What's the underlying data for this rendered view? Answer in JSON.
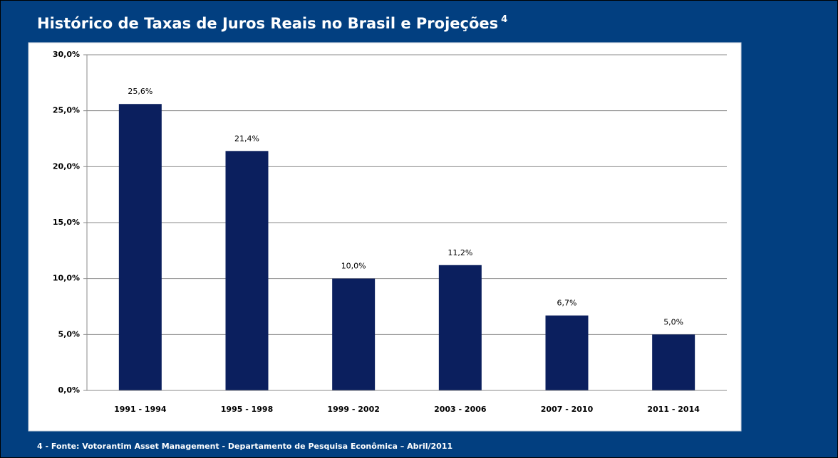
{
  "chart_data": {
    "type": "bar",
    "title": "Histórico de Taxas de Juros Reais no Brasil e Projeções",
    "title_superscript": "4",
    "categories": [
      "1991 - 1994",
      "1995 - 1998",
      "1999 - 2002",
      "2003 - 2006",
      "2007 - 2010",
      "2011 - 2014"
    ],
    "values": [
      25.6,
      21.4,
      10.0,
      11.2,
      6.7,
      5.0
    ],
    "value_labels": [
      "25,6%",
      "21,4%",
      "10,0%",
      "11,2%",
      "6,7%",
      "5,0%"
    ],
    "color": "#0b1f5e",
    "ylim": [
      0,
      30
    ],
    "yticks": [
      {
        "value": 0,
        "label": "0,0%"
      },
      {
        "value": 5,
        "label": "5,0%"
      },
      {
        "value": 10,
        "label": "10,0%"
      },
      {
        "value": 15,
        "label": "15,0%"
      },
      {
        "value": 20,
        "label": "20,0%"
      },
      {
        "value": 25,
        "label": "25,0%"
      },
      {
        "value": 30,
        "label": "30,0%"
      }
    ],
    "grid": true,
    "footnote": "4 - Fonte: Votorantim Asset Management - Departamento de Pesquisa Econômica – Abril/2011"
  }
}
